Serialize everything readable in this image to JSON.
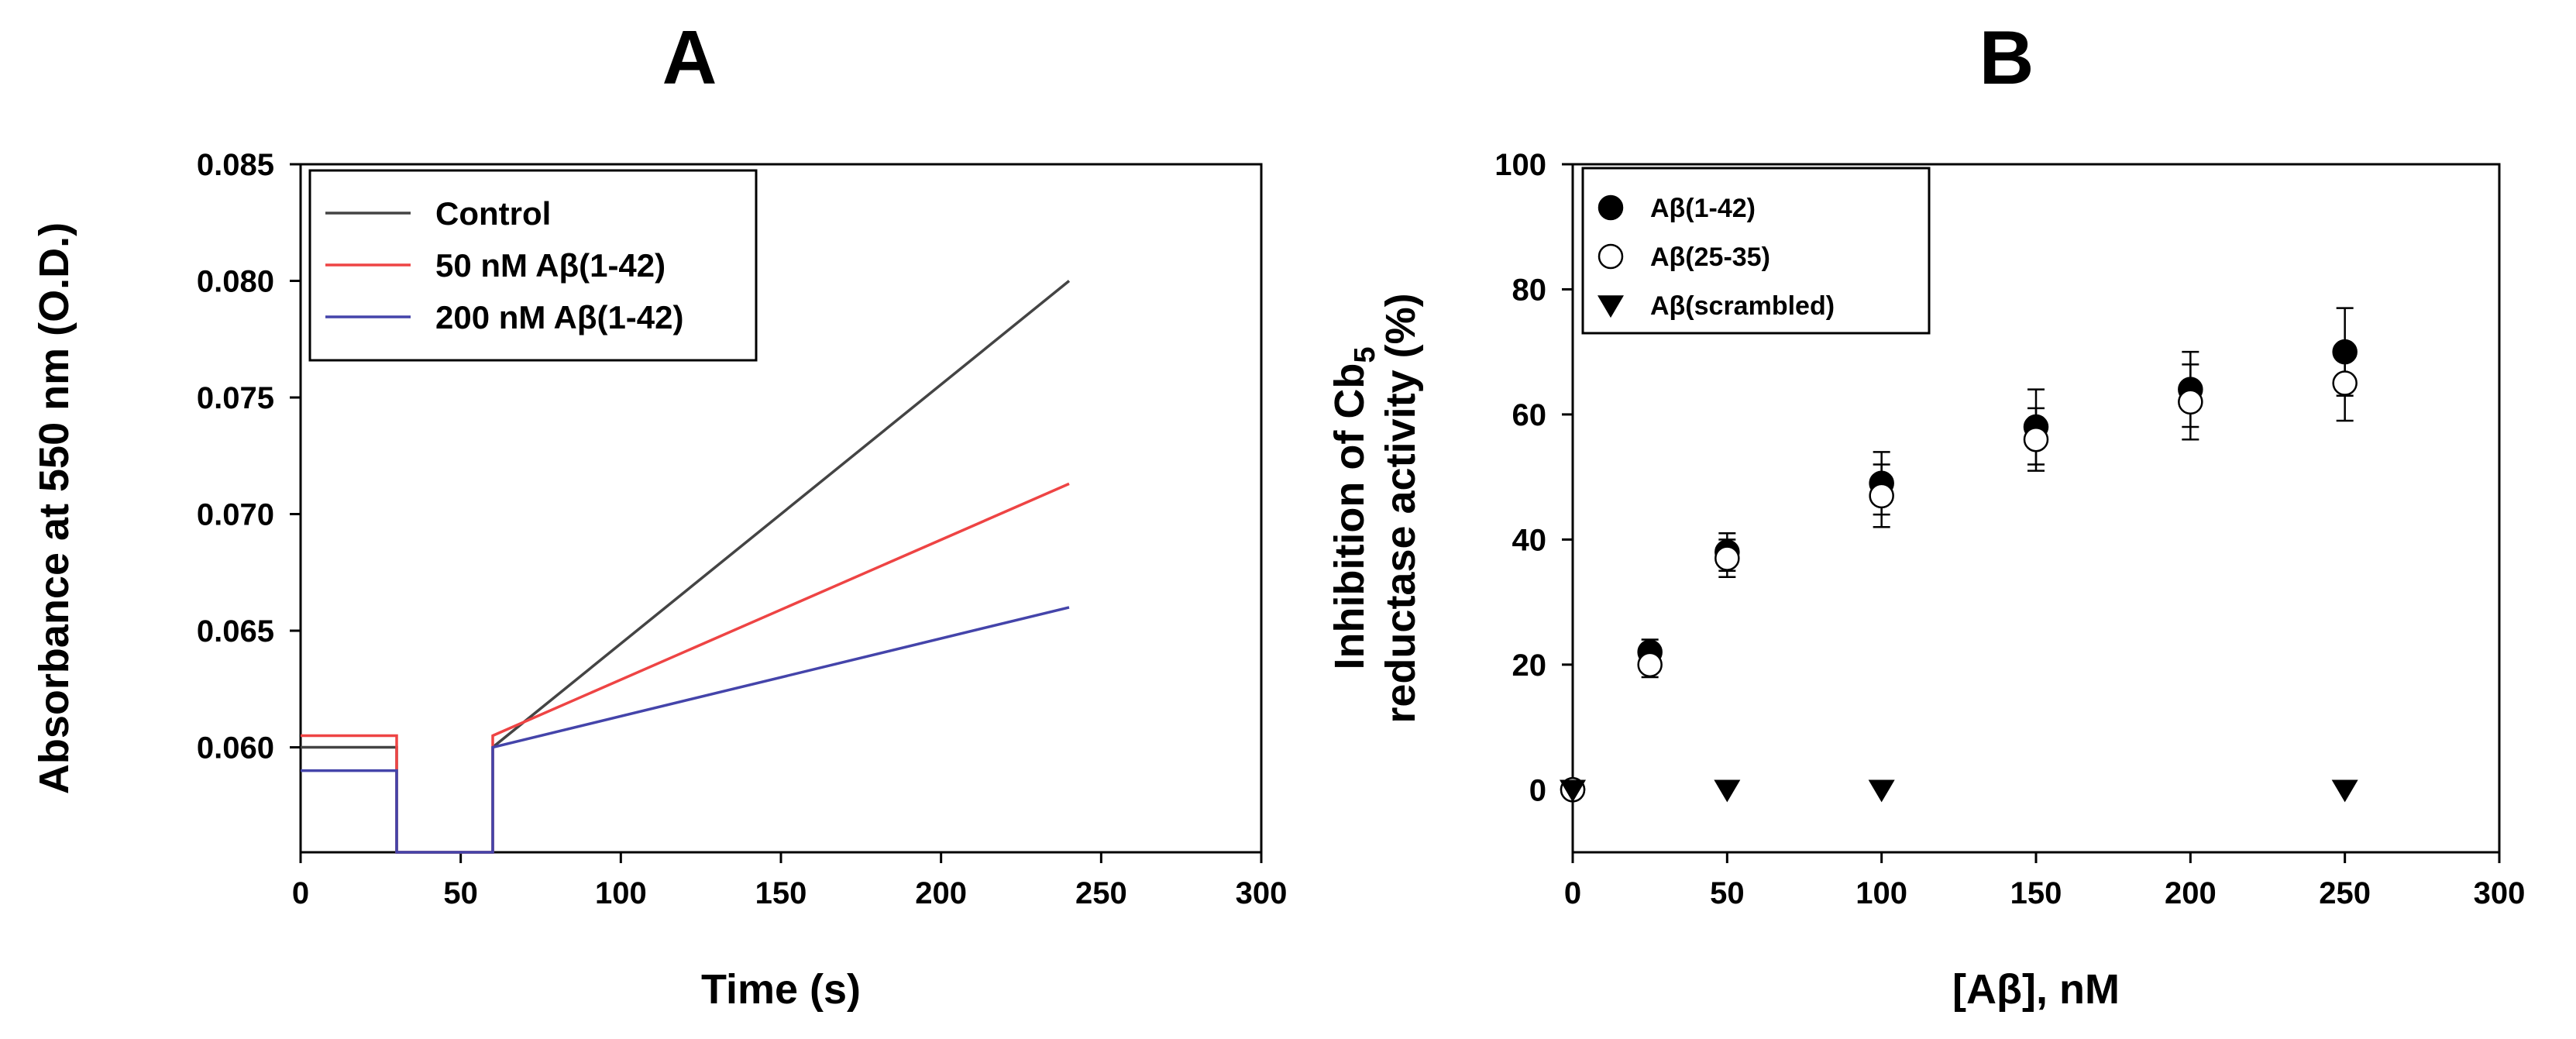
{
  "chart_data": [
    {
      "panel": "A",
      "type": "line",
      "title": "",
      "xlabel": "Time (s)",
      "ylabel": "Absorbance at 550 nm (O.D.)",
      "xlim": [
        0,
        300
      ],
      "ylim": [
        0.0555,
        0.085
      ],
      "xticks": [
        0,
        50,
        100,
        150,
        200,
        250,
        300
      ],
      "xtick_labels": [
        "0",
        "50",
        "100",
        "150",
        "200",
        "250",
        "300"
      ],
      "yticks": [
        0.06,
        0.065,
        0.07,
        0.075,
        0.08,
        0.085
      ],
      "ytick_labels": [
        "0.060",
        "0.065",
        "0.070",
        "0.075",
        "0.080",
        "0.085"
      ],
      "legend_position": "top-left",
      "series": [
        {
          "name": "Control",
          "color": "#444444",
          "x": [
            0,
            30,
            30,
            60,
            60,
            240
          ],
          "y": [
            0.06,
            0.06,
            0.0555,
            0.0555,
            0.06,
            0.08
          ]
        },
        {
          "name": "50 nM Aβ(1-42)",
          "color": "#ee4444",
          "x": [
            0,
            30,
            30,
            60,
            60,
            240
          ],
          "y": [
            0.0605,
            0.0605,
            0.0555,
            0.0555,
            0.0605,
            0.0713
          ]
        },
        {
          "name": "200 nM Aβ(1-42)",
          "color": "#4444aa",
          "x": [
            0,
            30,
            30,
            60,
            60,
            240
          ],
          "y": [
            0.059,
            0.059,
            0.0555,
            0.0555,
            0.06,
            0.066
          ]
        }
      ]
    },
    {
      "panel": "B",
      "type": "scatter",
      "title": "",
      "xlabel": "[Aβ], nM",
      "ylabel_line1": "Inhibition of Cb",
      "ylabel_sub": "5",
      "ylabel_line2": "reductase activity (%)",
      "xlim": [
        0,
        300
      ],
      "ylim": [
        -10,
        100
      ],
      "xticks": [
        0,
        50,
        100,
        150,
        200,
        250,
        300
      ],
      "xtick_labels": [
        "0",
        "50",
        "100",
        "150",
        "200",
        "250",
        "300"
      ],
      "yticks": [
        0,
        20,
        40,
        60,
        80,
        100
      ],
      "ytick_labels": [
        "0",
        "20",
        "40",
        "60",
        "80",
        "100"
      ],
      "legend_position": "top-left",
      "series": [
        {
          "name": "Aβ(1-42)",
          "marker": "filled-circle",
          "x": [
            0,
            25,
            50,
            100,
            150,
            200,
            250
          ],
          "y": [
            0,
            22,
            38,
            49,
            58,
            64,
            70
          ],
          "err": [
            0,
            2,
            3,
            5,
            6,
            6,
            7
          ]
        },
        {
          "name": "Aβ(25-35)",
          "marker": "open-circle",
          "x": [
            0,
            25,
            50,
            100,
            150,
            200,
            250
          ],
          "y": [
            0,
            20,
            37,
            47,
            56,
            62,
            65
          ],
          "err": [
            0,
            2,
            3,
            5,
            5,
            6,
            6
          ]
        },
        {
          "name": "Aβ(scrambled)",
          "marker": "filled-triangle-down",
          "x": [
            0,
            50,
            100,
            250
          ],
          "y": [
            0,
            0,
            0,
            0
          ],
          "err": [
            0,
            0,
            0,
            0
          ]
        }
      ]
    }
  ]
}
